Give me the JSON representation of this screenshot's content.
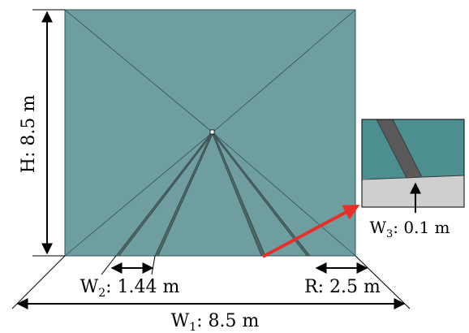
{
  "labels": {
    "height_var": "H",
    "height_val": ": 8.5 m",
    "width_var": "W",
    "width_sub": "1",
    "width_val": ": 8.5 m",
    "crack_var": "W",
    "crack_sub": "2",
    "crack_val": ": 1.44 m",
    "radius_var": "R",
    "radius_val": ": 2.5 m",
    "thick_var": "W",
    "thick_sub": "3",
    "thick_val": ": 0.1 m"
  },
  "colors": {
    "panel": "#6e9ea0",
    "inset_panel": "#4d8f90",
    "inset_base": "#cfcfcf",
    "crack": "#595959",
    "arrow_red": "#e8302a",
    "line": "#000000"
  }
}
